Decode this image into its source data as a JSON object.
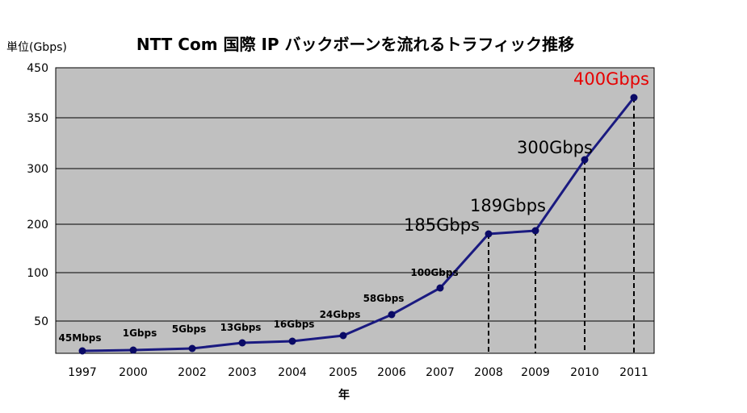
{
  "chart_data": {
    "type": "line",
    "title": "NTT Com 国際 IP バックボーンを流れるトラフィック推移",
    "ylabel": "単位(Gbps)",
    "xlabel": "年",
    "categories": [
      "1997",
      "2000",
      "2002",
      "2003",
      "2004",
      "2005",
      "2006",
      "2007",
      "2008",
      "2009",
      "2010",
      "2011"
    ],
    "y_tick_labels": [
      "50",
      "100",
      "200",
      "300",
      "350",
      "450"
    ],
    "values": [
      0.045,
      1,
      5,
      13,
      16,
      24,
      58,
      100,
      185,
      189,
      300,
      400
    ],
    "point_labels": [
      "45Mbps",
      "1Gbps",
      "5Gbps",
      "13Gbps",
      "16Gbps",
      "24Gbps",
      "58Gbps",
      "100Gbps",
      "185Gbps",
      "189Gbps",
      "300Gbps",
      "400Gbps"
    ],
    "highlight_label": "400Gbps",
    "grid": true,
    "colors": {
      "plot_background": "#c0c0c0",
      "line": "#1a1a80",
      "marker": "#0a0a66",
      "highlight_text": "#e60000",
      "text": "#000000"
    }
  }
}
